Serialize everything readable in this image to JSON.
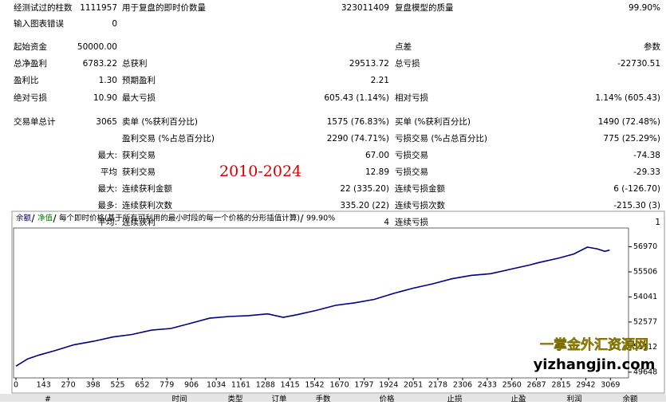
{
  "report": {
    "rows": [
      [
        "经测试过的柱数",
        "1111957",
        "用于复盘的即时价数量",
        "323011409",
        "复盘模型的质量",
        "99.90%"
      ],
      [
        "输入图表错误",
        "0",
        null,
        null,
        null,
        null
      ],
      [
        "起始资金",
        "50000.00",
        null,
        null,
        "点差",
        "参数"
      ],
      [
        "总净盈利",
        "6783.22",
        "总获利",
        "29513.72",
        "总亏损",
        "-22730.51"
      ],
      [
        "盈利比",
        "1.30",
        "预期盈利",
        "2.21",
        null,
        null
      ],
      [
        "绝对亏损",
        "10.90",
        "最大亏损",
        "605.43 (1.14%)",
        "相对亏损",
        "1.14% (605.43)"
      ],
      [
        "交易单总计",
        "3065",
        "卖单 (%获利百分比)",
        "1575 (76.83%)",
        "买单 (%获利百分比)",
        "1490 (72.48%)"
      ],
      [
        null,
        null,
        "盈利交易 (%占总百分比)",
        "2290 (74.71%)",
        "亏损交易 (%占总百分比)",
        "775 (25.29%)"
      ],
      [
        null,
        "最大:",
        "获利交易",
        "67.00",
        "亏损交易",
        "-74.38"
      ],
      [
        null,
        "平均",
        "获利交易",
        "12.89",
        "亏损交易",
        "-29.33"
      ],
      [
        null,
        "最大:",
        "连续获利金额",
        "22 (335.20)",
        "连续亏损金额",
        "6 (-126.70)"
      ],
      [
        null,
        "最多:",
        "连续获利次数",
        "335.20 (22)",
        "连续亏损次数",
        "-215.30 (3)"
      ],
      [
        null,
        "平均:",
        "连续获利",
        "4",
        "连续亏损",
        "1"
      ]
    ],
    "annotation": "2010-2024",
    "watermark": [
      "一掌金外汇资源网",
      "yizhangjin.com"
    ],
    "trades_header": [
      "#",
      "时间",
      "类型",
      "订单",
      "手数",
      "价格",
      "止损",
      "止盈",
      "利润",
      "余额"
    ]
  },
  "chart_data": {
    "type": "line",
    "legend": [
      "余额",
      "净值",
      "每个即时价格(基于所有可利用的最小时段的每一个价格的分形插值计算)",
      "99.90%"
    ],
    "x": [
      0,
      60,
      120,
      200,
      300,
      400,
      500,
      600,
      700,
      800,
      900,
      1000,
      1100,
      1200,
      1300,
      1380,
      1450,
      1550,
      1650,
      1750,
      1850,
      1950,
      2050,
      2150,
      2250,
      2350,
      2450,
      2550,
      2650,
      2700,
      2800,
      2880,
      2950,
      3000,
      3040,
      3065
    ],
    "series": [
      {
        "name": "余额",
        "color": "#00007f",
        "values": [
          50000,
          50420,
          50650,
          50900,
          51250,
          51450,
          51700,
          51850,
          52100,
          52200,
          52500,
          52800,
          52900,
          52950,
          53050,
          52850,
          53000,
          53250,
          53550,
          53700,
          53900,
          54250,
          54550,
          54800,
          55100,
          55300,
          55400,
          55650,
          55900,
          56050,
          56300,
          56550,
          56950,
          56850,
          56700,
          56783
        ]
      }
    ],
    "xlim": [
      0,
      3150
    ],
    "ylim": [
      49500,
      57600
    ],
    "xticks": [
      0,
      143,
      270,
      398,
      525,
      652,
      779,
      906,
      1034,
      1161,
      1288,
      1415,
      1542,
      1670,
      1797,
      1924,
      2051,
      2178,
      2306,
      2433,
      2560,
      2687,
      2815,
      2942,
      3069
    ],
    "yticks": [
      49648,
      51112,
      52577,
      54041,
      55506,
      56970
    ]
  }
}
